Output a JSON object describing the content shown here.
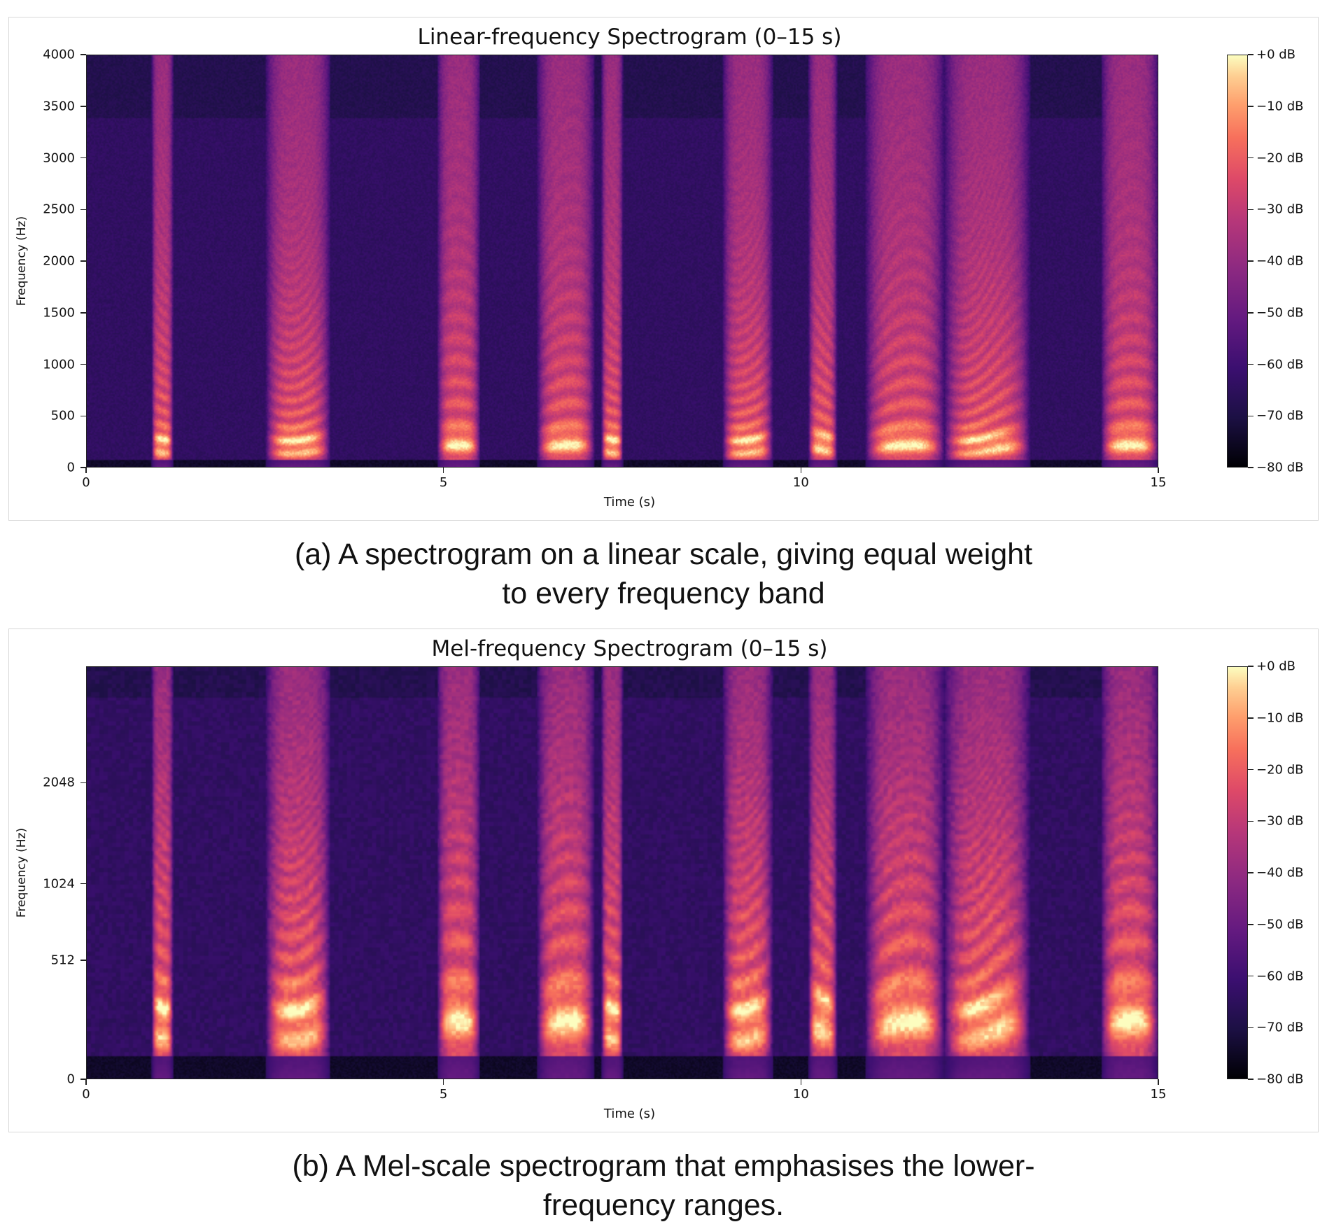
{
  "chart_data": [
    {
      "type": "heatmap",
      "title": "Linear-frequency Spectrogram (0–15 s)",
      "xlabel": "Time (s)",
      "ylabel": "Frequency (Hz)",
      "xlim": [
        0,
        15
      ],
      "ylim": [
        0,
        4000
      ],
      "yscale": "linear",
      "x_ticks": [
        "0",
        "5",
        "10",
        "15"
      ],
      "x_tick_values": [
        0,
        5,
        10,
        15
      ],
      "y_ticks": [
        "0",
        "500",
        "1000",
        "1500",
        "2000",
        "2500",
        "3000",
        "3500",
        "4000"
      ],
      "y_tick_values": [
        0,
        500,
        1000,
        1500,
        2000,
        2500,
        3000,
        3500,
        4000
      ],
      "colormap": "magma",
      "colorbar": {
        "range": [
          -80,
          0
        ],
        "ticks": [
          "+0 dB",
          "−10 dB",
          "−20 dB",
          "−30 dB",
          "−40 dB",
          "−50 dB",
          "−60 dB",
          "−70 dB",
          "−80 dB"
        ],
        "tick_values": [
          0,
          -10,
          -20,
          -30,
          -40,
          -50,
          -60,
          -70,
          -80
        ]
      },
      "speech_segments_s": [
        [
          0.9,
          1.2
        ],
        [
          2.5,
          3.4
        ],
        [
          4.9,
          5.5
        ],
        [
          6.3,
          7.1
        ],
        [
          7.2,
          7.5
        ],
        [
          8.9,
          9.6
        ],
        [
          10.1,
          10.5
        ],
        [
          10.9,
          12.0
        ],
        [
          12.0,
          13.2
        ],
        [
          14.2,
          15.0
        ]
      ],
      "grid": false
    },
    {
      "type": "heatmap",
      "title": "Mel-frequency Spectrogram (0–15 s)",
      "xlabel": "Time (s)",
      "ylabel": "Frequency (Hz)",
      "xlim": [
        0,
        15
      ],
      "yscale": "mel",
      "x_ticks": [
        "0",
        "5",
        "10",
        "15"
      ],
      "x_tick_values": [
        0,
        5,
        10,
        15
      ],
      "y_ticks": [
        "0",
        "512",
        "1024",
        "2048"
      ],
      "y_tick_values": [
        0,
        512,
        1024,
        2048
      ],
      "colormap": "magma",
      "colorbar": {
        "range": [
          -80,
          0
        ],
        "ticks": [
          "+0 dB",
          "−10 dB",
          "−20 dB",
          "−30 dB",
          "−40 dB",
          "−50 dB",
          "−60 dB",
          "−70 dB",
          "−80 dB"
        ],
        "tick_values": [
          0,
          -10,
          -20,
          -30,
          -40,
          -50,
          -60,
          -70,
          -80
        ]
      },
      "speech_segments_s": [
        [
          0.9,
          1.2
        ],
        [
          2.5,
          3.4
        ],
        [
          4.9,
          5.5
        ],
        [
          6.3,
          7.1
        ],
        [
          7.2,
          7.5
        ],
        [
          8.9,
          9.6
        ],
        [
          10.1,
          10.5
        ],
        [
          10.9,
          12.0
        ],
        [
          12.0,
          13.2
        ],
        [
          14.2,
          15.0
        ]
      ],
      "grid": false
    }
  ],
  "captions": {
    "a_line1": "(a) A spectrogram on a linear scale, giving equal weight",
    "a_line2": "to every frequency band",
    "b_line1": "(b) A Mel-scale spectrogram that emphasises the lower-",
    "b_line2": "frequency ranges."
  }
}
